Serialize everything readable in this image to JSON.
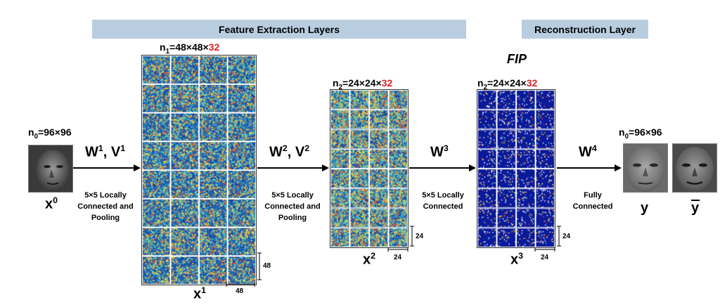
{
  "banners": {
    "feature": "Feature Extraction Layers",
    "reconstruction": "Reconstruction Layer"
  },
  "fip": "FIP",
  "dims": {
    "n0_in": {
      "base": "n",
      "sub": "0",
      "text": "=96×96",
      "red": ""
    },
    "n1": {
      "base": "n",
      "sub": "1",
      "text": "=48×48×",
      "red": "32"
    },
    "n2_a": {
      "base": "n",
      "sub": "2",
      "text": "=24×24×",
      "red": "32"
    },
    "n2_b": {
      "base": "n",
      "sub": "2",
      "text": "=24×24×",
      "red": "32"
    },
    "n0_out": {
      "base": "n",
      "sub": "0",
      "text": "=96×96",
      "red": ""
    }
  },
  "weights": {
    "w1": {
      "a": "W",
      "a_sup": "1",
      "sep": ", ",
      "b": "V",
      "b_sup": "1"
    },
    "w2": {
      "a": "W",
      "a_sup": "2",
      "sep": ", ",
      "b": "V",
      "b_sup": "2"
    },
    "w3": {
      "a": "W",
      "a_sup": "3"
    },
    "w4": {
      "a": "W",
      "a_sup": "4"
    }
  },
  "ops": {
    "op1": [
      "5×5 Locally",
      "Connected and",
      "Pooling"
    ],
    "op2": [
      "5×5 Locally",
      "Connected and",
      "Pooling"
    ],
    "op3": [
      "5×5 Locally",
      "Connected"
    ],
    "op4": [
      "Fully",
      "Connected"
    ]
  },
  "vars": {
    "x0": {
      "base": "x",
      "sup": "0"
    },
    "x1": {
      "base": "x",
      "sup": "1"
    },
    "x2": {
      "base": "x",
      "sup": "2"
    },
    "x3": {
      "base": "x",
      "sup": "3"
    },
    "y": "y",
    "ybar": "y"
  },
  "scale": {
    "s48_v": "48",
    "s48_h": "48",
    "s24a_v": "24",
    "s24a_h": "24",
    "s24b_v": "24",
    "s24b_h": "24"
  },
  "colors": {
    "banner": "#b9cde0",
    "highlight": "#e02020",
    "fmap_bg": "#1f5fb0",
    "fip_bg": "#0a1a9a"
  }
}
